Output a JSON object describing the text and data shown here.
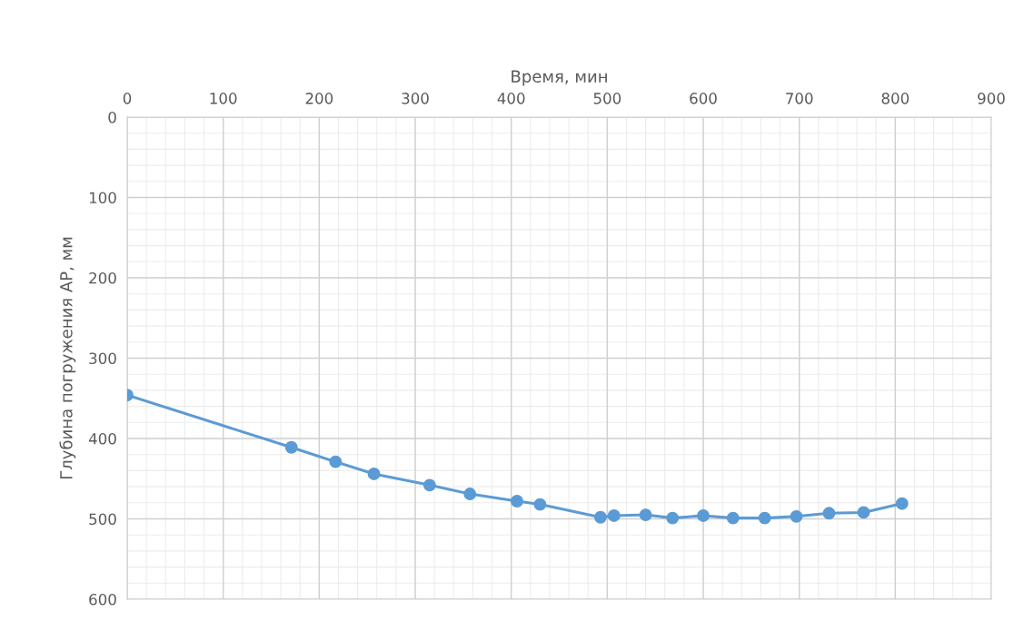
{
  "chart_data": {
    "type": "line",
    "xlabel": "Время, мин",
    "ylabel": "Глубина погружения АР, мм",
    "x": [
      0,
      171,
      217,
      257,
      315,
      357,
      406,
      430,
      493,
      507,
      540,
      568,
      600,
      631,
      664,
      697,
      731,
      767,
      807
    ],
    "series": [
      {
        "color": "#5b9bd5",
        "values": [
          346,
          411,
          429,
          444,
          458,
          469,
          478,
          482,
          498,
          496,
          495,
          499,
          496,
          499,
          499,
          497,
          493,
          492,
          481
        ]
      }
    ],
    "xlim": [
      0,
      900
    ],
    "xticks": [
      0,
      100,
      200,
      300,
      400,
      500,
      600,
      700,
      800,
      900
    ],
    "ylim": [
      600,
      0
    ],
    "yticks": [
      0,
      100,
      200,
      300,
      400,
      500,
      600
    ],
    "grid": true,
    "marker": "circle",
    "line_style": "solid"
  }
}
